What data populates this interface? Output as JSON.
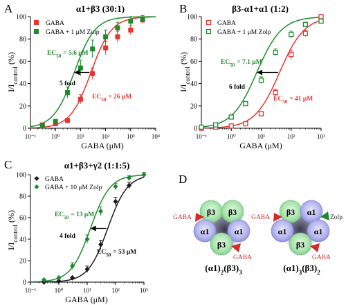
{
  "figure": {
    "colors": {
      "red": "#e8332f",
      "green": "#1e8a2c",
      "black": "#1a1a1a"
    },
    "panels": [
      {
        "letter": "A",
        "title": "α1+β3 (30:1)",
        "ylabel_main": "I/I",
        "ylabel_sub": "control",
        "ylabel_unit": "(%)",
        "xlabel": "GABA (μM)",
        "fold_label": "5 fold",
        "ec_labels": [
          {
            "text": "EC",
            "sub": "50",
            "value": "= 5.6 μM",
            "color": "green"
          },
          {
            "text": "EC",
            "sub": "50",
            "value": "= 26 μM",
            "color": "red"
          }
        ],
        "legend": [
          {
            "label": "GABA",
            "color": "red",
            "marker": "square-filled"
          },
          {
            "label": "GABA + 1 μM Zolp",
            "color": "green",
            "marker": "square-filled"
          }
        ]
      },
      {
        "letter": "B",
        "title": "β3-α1+α1 (1:2)",
        "ylabel_main": "I/I",
        "ylabel_sub": "control",
        "ylabel_unit": "(%)",
        "xlabel": "GABA (μM)",
        "fold_label": "6 fold",
        "ec_labels": [
          {
            "text": "EC",
            "sub": "50",
            "value": "= 7.1 μM",
            "color": "green"
          },
          {
            "text": "EC",
            "sub": "50",
            "value": "= 41 μM",
            "color": "red"
          }
        ],
        "legend": [
          {
            "label": "GABA",
            "color": "red",
            "marker": "square-open"
          },
          {
            "label": "GABA + 1 μM Zolp",
            "color": "green",
            "marker": "square-open"
          }
        ]
      },
      {
        "letter": "C",
        "title": "α1+β3+γ2 (1:1:5)",
        "ylabel_main": "I/I",
        "ylabel_sub": "control",
        "ylabel_unit": "(%)",
        "xlabel": "GABA (μM)",
        "fold_label": "4 fold",
        "ec_labels": [
          {
            "text": "EC",
            "sub": "50",
            "value": "= 13 μM",
            "color": "green"
          },
          {
            "text": "EC",
            "sub": "50",
            "value": "= 53 μM",
            "color": "black"
          }
        ],
        "legend": [
          {
            "label": "GABA",
            "color": "black",
            "marker": "diamond"
          },
          {
            "label": "GABA + 10 μM Zolp",
            "color": "green",
            "marker": "diamond"
          }
        ]
      }
    ],
    "diagram": {
      "letter": "D",
      "left": {
        "subunits": [
          "β3",
          "β3",
          "α1",
          "α1",
          "β3"
        ],
        "gaba_labels": [
          "GABA",
          "GABA"
        ],
        "caption_parts": [
          "(α1)",
          "2",
          "(β3)",
          "3"
        ]
      },
      "right": {
        "subunits": [
          "β3",
          "α1",
          "α1",
          "α1",
          "β3"
        ],
        "gaba_labels": [
          "GABA",
          "GABA"
        ],
        "zolp_label": "Zolp",
        "caption_parts": [
          "(α1)",
          "3",
          "(β3)",
          "2"
        ]
      }
    }
  },
  "chart_data": [
    {
      "type": "scatter",
      "title": "α1+β3 (30:1)",
      "xlabel": "GABA (μM)",
      "ylabel": "I/Icontrol (%)",
      "x_scale": "log",
      "xlim": [
        0.1,
        10000
      ],
      "ylim": [
        0,
        100
      ],
      "x_ticks": [
        "10⁻¹",
        "10⁰",
        "10¹",
        "10²",
        "10³",
        "10⁴"
      ],
      "y_ticks": [
        0,
        20,
        40,
        60,
        80,
        100
      ],
      "series": [
        {
          "name": "GABA",
          "color": "#e8332f",
          "marker": "square-filled",
          "ec50": 26,
          "x": [
            0.3,
            1,
            3,
            10,
            30,
            100,
            300,
            1000,
            3000
          ],
          "y": [
            3,
            4,
            7,
            26,
            49,
            72,
            82,
            88,
            97
          ],
          "err": [
            1,
            1,
            2,
            4,
            5,
            6,
            5,
            4,
            3
          ]
        },
        {
          "name": "GABA + 1 μM Zolp",
          "color": "#1e8a2c",
          "marker": "square-filled",
          "ec50": 5.6,
          "x": [
            0.3,
            1,
            3,
            10,
            30,
            100,
            300,
            1000,
            3000
          ],
          "y": [
            2,
            6,
            32,
            54,
            71,
            82,
            90,
            96,
            98
          ],
          "err": [
            1,
            2,
            5,
            7,
            8,
            6,
            5,
            4,
            3
          ]
        }
      ]
    },
    {
      "type": "scatter",
      "title": "β3-α1+α1 (1:2)",
      "xlabel": "GABA (μM)",
      "ylabel": "I/Icontrol (%)",
      "x_scale": "log",
      "xlim": [
        0.1,
        1000
      ],
      "ylim": [
        0,
        100
      ],
      "x_ticks": [
        "10⁻¹",
        "10⁰",
        "10¹",
        "10²",
        "10³"
      ],
      "y_ticks": [
        0,
        20,
        40,
        60,
        80,
        100
      ],
      "series": [
        {
          "name": "GABA",
          "color": "#e8332f",
          "marker": "square-open",
          "ec50": 41,
          "x": [
            0.1,
            0.3,
            1,
            3,
            10,
            30,
            100,
            300,
            1000
          ],
          "y": [
            0,
            1,
            2,
            4,
            13,
            32,
            66,
            85,
            100
          ],
          "err": [
            0,
            0,
            1,
            1,
            2,
            3,
            4,
            3,
            2
          ]
        },
        {
          "name": "GABA + 1 μM Zolp",
          "color": "#1e8a2c",
          "marker": "square-open",
          "ec50": 7.1,
          "x": [
            0.1,
            0.3,
            1,
            3,
            10,
            30,
            100,
            300,
            1000
          ],
          "y": [
            1,
            3,
            10,
            22,
            43,
            68,
            84,
            93,
            96
          ],
          "err": [
            0,
            1,
            2,
            2,
            3,
            3,
            3,
            2,
            2
          ]
        }
      ]
    },
    {
      "type": "scatter",
      "title": "α1+β3+γ2 (1:1:5)",
      "xlabel": "GABA (μM)",
      "ylabel": "I/Icontrol (%)",
      "x_scale": "log",
      "xlim": [
        0.1,
        1000
      ],
      "ylim": [
        0,
        100
      ],
      "x_ticks": [
        "10⁻¹",
        "10⁰",
        "10¹",
        "10²",
        "10³"
      ],
      "y_ticks": [
        0,
        20,
        40,
        60,
        80,
        100
      ],
      "series": [
        {
          "name": "GABA",
          "color": "#1a1a1a",
          "marker": "diamond",
          "ec50": 53,
          "x": [
            0.3,
            1,
            3,
            10,
            30,
            100,
            300,
            1000
          ],
          "y": [
            0,
            1,
            4,
            12,
            35,
            75,
            90,
            100
          ],
          "err": [
            0,
            1,
            1,
            3,
            4,
            4,
            3,
            2
          ]
        },
        {
          "name": "GABA + 10 μM Zolp",
          "color": "#1e8a2c",
          "marker": "diamond",
          "ec50": 13,
          "x": [
            0.3,
            1,
            3,
            10,
            30,
            100,
            300,
            1000
          ],
          "y": [
            2,
            4,
            15,
            40,
            66,
            89,
            97,
            100
          ],
          "err": [
            1,
            1,
            3,
            4,
            4,
            3,
            2,
            2
          ]
        }
      ]
    }
  ]
}
